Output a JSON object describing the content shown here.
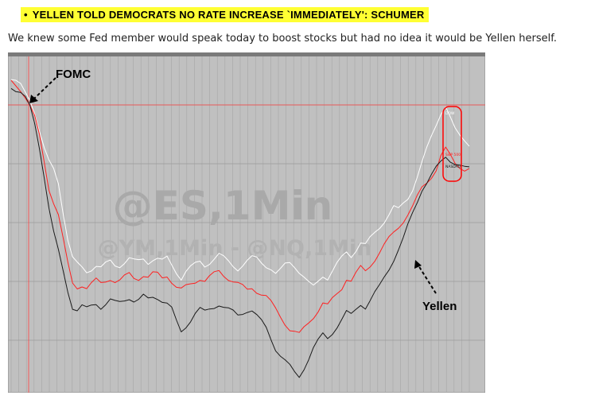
{
  "headline": {
    "bullet": "•",
    "text": "YELLEN TOLD DEMOCRATS NO RATE INCREASE `IMMEDIATELY': SCHUMER",
    "highlight_color": "#ffff33"
  },
  "subtext": "We knew some Fed member would speak today to boost stocks but had no idea it would be Yellen herself.",
  "chart_data": {
    "type": "line",
    "title": "",
    "watermark_primary": "@ES,1Min",
    "watermark_secondary": "@YM,1Min - @NQ,1Min",
    "xlabel": "",
    "ylabel": "",
    "grid": true,
    "background_color": "#c0c0c0",
    "x_range": [
      0,
      100
    ],
    "y_range": [
      0,
      100
    ],
    "annotations": [
      {
        "text": "FOMC",
        "x": 5,
        "y": 72
      },
      {
        "text": "Yellen",
        "x": 84,
        "y": 31
      }
    ],
    "series": [
      {
        "color": "#ffffff",
        "values": [
          96,
          95,
          94,
          92,
          90,
          86,
          80,
          74,
          70,
          68,
          64,
          55,
          46,
          40,
          38,
          37,
          36,
          37,
          38,
          37,
          38,
          39,
          38,
          38,
          39,
          40,
          39,
          39,
          40,
          39,
          40,
          40,
          39,
          40,
          38,
          36,
          34,
          36,
          37,
          38,
          39,
          38,
          39,
          40,
          41,
          40,
          39,
          38,
          37,
          38,
          39,
          40,
          40,
          39,
          38,
          37,
          35,
          36,
          38,
          39,
          38,
          36,
          34,
          32,
          31,
          33,
          35,
          34,
          36,
          38,
          40,
          42,
          41,
          43,
          45,
          44,
          46,
          48,
          50,
          52,
          54,
          56,
          55,
          57,
          59,
          62,
          66,
          70,
          74,
          78,
          82,
          86,
          88,
          84,
          80,
          78,
          77,
          76
        ]
      },
      {
        "color": "#ff2020",
        "values": [
          95,
          94,
          93,
          91,
          88,
          84,
          78,
          70,
          62,
          58,
          54,
          46,
          38,
          32,
          31,
          32,
          31,
          32,
          33,
          32,
          33,
          34,
          33,
          33,
          34,
          35,
          34,
          34,
          35,
          34,
          35,
          35,
          34,
          35,
          33,
          31,
          30,
          31,
          32,
          33,
          34,
          33,
          34,
          35,
          36,
          35,
          34,
          33,
          32,
          31,
          30,
          31,
          30,
          29,
          28,
          26,
          24,
          22,
          20,
          18,
          17,
          16,
          18,
          20,
          22,
          24,
          26,
          25,
          27,
          29,
          31,
          34,
          33,
          35,
          37,
          36,
          38,
          40,
          42,
          44,
          46,
          48,
          50,
          52,
          54,
          56,
          59,
          62,
          64,
          66,
          68,
          72,
          74,
          72,
          70,
          69,
          68,
          68
        ]
      },
      {
        "color": "#1a1a1a",
        "values": [
          94,
          93,
          92,
          90,
          87,
          82,
          75,
          66,
          56,
          48,
          42,
          36,
          30,
          25,
          24,
          25,
          24,
          25,
          26,
          25,
          26,
          27,
          26,
          26,
          27,
          28,
          27,
          27,
          28,
          27,
          28,
          28,
          27,
          26,
          24,
          20,
          17,
          19,
          21,
          23,
          24,
          23,
          24,
          25,
          26,
          25,
          24,
          23,
          22,
          23,
          24,
          24,
          22,
          20,
          18,
          15,
          12,
          10,
          8,
          6,
          4,
          3,
          6,
          9,
          12,
          14,
          16,
          15,
          17,
          19,
          21,
          23,
          22,
          24,
          26,
          25,
          27,
          29,
          31,
          34,
          37,
          40,
          43,
          46,
          50,
          54,
          58,
          62,
          64,
          66,
          68,
          70,
          72,
          71,
          70,
          69,
          68,
          68
        ]
      }
    ],
    "legend_labels": [
      {
        "text": "DOW",
        "color": "#ffffff"
      },
      {
        "text": "S&P 500",
        "color": "#ff2020"
      },
      {
        "text": "NASDAQ",
        "color": "#1a1a1a"
      }
    ]
  }
}
